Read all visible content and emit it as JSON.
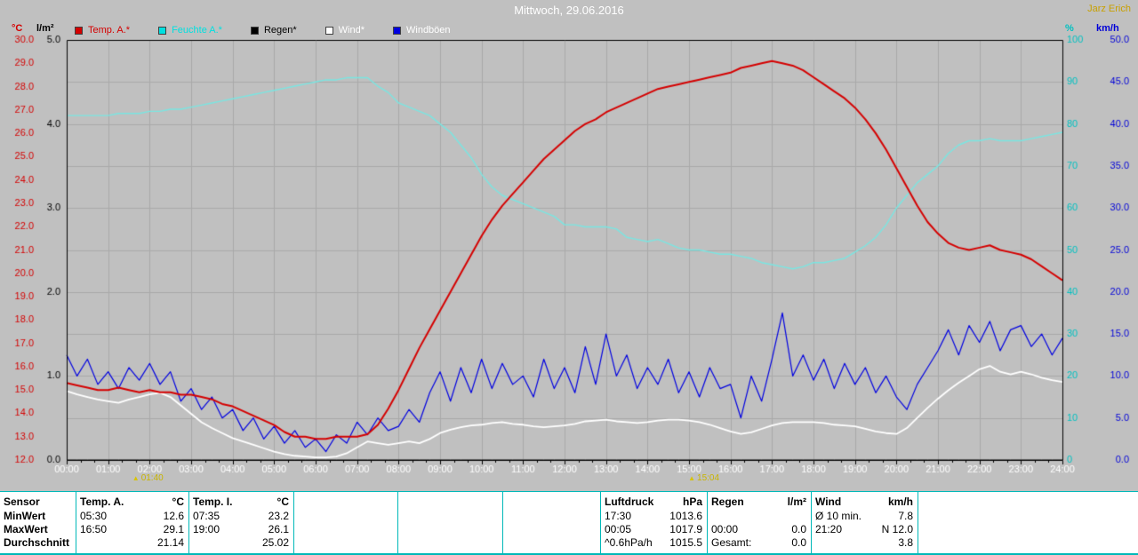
{
  "header": {
    "title": "Mittwoch, 29.06.2016",
    "user": "Jarz Erich"
  },
  "axis_units": {
    "temp": "°C",
    "rain": "l/m²",
    "humidity": "%",
    "wind": "km/h"
  },
  "legend": {
    "items": [
      {
        "label": "Temp. A.*",
        "color": "#d40000",
        "text_color": "#d40000"
      },
      {
        "label": "Feuchte A.*",
        "color": "#00e0e0",
        "text_color": "#00e0e0"
      },
      {
        "label": "Regen*",
        "color": "#000000",
        "text_color": "#000000"
      },
      {
        "label": "Wind*",
        "color": "#ffffff",
        "text_color": "#ffffff"
      },
      {
        "label": "Windböen",
        "color": "#0000e0",
        "text_color": "#ffffff"
      }
    ]
  },
  "chart_data": {
    "type": "line",
    "title": "Mittwoch, 29.06.2016",
    "x": {
      "label": "Uhrzeit",
      "min": 0,
      "max": 24,
      "step_h": 0.25,
      "tick_every_h": 1
    },
    "grid": {
      "h_divisions": 10,
      "v_every_h": 1
    },
    "axes": {
      "temp": {
        "unit": "°C",
        "min": 12,
        "max": 30,
        "tick_from": 12,
        "tick_to": 30,
        "tick_step": 1,
        "decimals": 1,
        "color": "#d40000"
      },
      "rain": {
        "unit": "l/m²",
        "min": 0,
        "max": 5,
        "tick_from": 0,
        "tick_to": 5,
        "tick_step": 1,
        "decimals": 1,
        "color": "#000000"
      },
      "humidity": {
        "unit": "%",
        "min": 0,
        "max": 100,
        "tick_from": 0,
        "tick_to": 100,
        "tick_step": 10,
        "decimals": 0,
        "color": "#00c0c0"
      },
      "wind": {
        "unit": "km/h",
        "min": 0,
        "max": 50,
        "tick_from": 0,
        "tick_to": 50,
        "tick_step": 5,
        "decimals": 1,
        "color": "#0000d8"
      }
    },
    "markers": [
      {
        "label": "01:40"
      },
      {
        "label": "15:04"
      }
    ],
    "series": [
      {
        "name": "Regen",
        "axis": "rain",
        "color": "#000000",
        "width": 1,
        "values": [
          0,
          0,
          0,
          0,
          0,
          0,
          0,
          0,
          0,
          0,
          0,
          0,
          0,
          0,
          0,
          0,
          0,
          0,
          0,
          0,
          0,
          0,
          0,
          0,
          0,
          0,
          0,
          0,
          0,
          0,
          0,
          0,
          0,
          0,
          0,
          0,
          0,
          0,
          0,
          0,
          0,
          0,
          0,
          0,
          0,
          0,
          0,
          0,
          0,
          0,
          0,
          0,
          0,
          0,
          0,
          0,
          0,
          0,
          0,
          0,
          0,
          0,
          0,
          0,
          0,
          0,
          0,
          0,
          0,
          0,
          0,
          0,
          0,
          0,
          0,
          0,
          0,
          0,
          0,
          0,
          0,
          0,
          0,
          0,
          0,
          0,
          0,
          0,
          0,
          0,
          0,
          0,
          0,
          0,
          0,
          0,
          0
        ]
      },
      {
        "name": "Feuchte A.",
        "axis": "humidity",
        "color": "#78e6e2",
        "width": 1.4,
        "values": [
          82,
          82,
          82,
          82,
          82,
          82.5,
          82.5,
          82.5,
          83,
          83,
          83.5,
          83.5,
          84,
          84.5,
          85,
          85.5,
          86,
          86.5,
          87,
          87.5,
          88,
          88.5,
          89,
          89.5,
          90,
          90.5,
          90.5,
          91,
          91,
          91,
          89,
          87.5,
          85,
          84,
          83,
          82,
          80,
          78,
          75,
          72,
          68,
          65,
          63,
          62,
          61,
          60,
          59,
          58,
          56,
          56,
          55.5,
          55.5,
          55.5,
          55,
          53,
          52.5,
          52,
          52.5,
          51.5,
          50.5,
          50,
          50,
          49.5,
          49,
          49,
          48.5,
          48,
          47,
          46.5,
          46,
          45.5,
          46,
          47,
          47,
          47.5,
          48,
          49.5,
          51,
          53,
          56,
          60,
          63,
          66,
          68,
          70,
          73,
          75,
          76,
          76,
          76.5,
          76,
          76,
          76,
          76.5,
          77,
          77.5,
          78
        ]
      },
      {
        "name": "Windböen",
        "axis": "wind",
        "color": "#0000e0",
        "width": 1.2,
        "values": [
          12.5,
          10.0,
          12.0,
          9.0,
          10.5,
          8.5,
          11.0,
          9.5,
          11.5,
          9.0,
          10.5,
          7.0,
          8.5,
          6.0,
          7.5,
          5.0,
          6.0,
          3.5,
          5.0,
          2.5,
          4.0,
          2.0,
          3.5,
          1.5,
          2.5,
          1.0,
          3.0,
          2.0,
          4.5,
          3.0,
          5.0,
          3.5,
          4.0,
          6.0,
          4.5,
          8.0,
          10.5,
          7.0,
          11.0,
          8.0,
          12.0,
          8.5,
          11.5,
          9.0,
          10.0,
          7.5,
          12.0,
          8.5,
          11.0,
          8.0,
          13.5,
          9.0,
          15.0,
          10.0,
          12.5,
          8.5,
          11.0,
          9.0,
          12.0,
          8.0,
          10.5,
          7.5,
          11.0,
          8.5,
          9.0,
          5.0,
          10.0,
          7.0,
          12.0,
          17.5,
          10.0,
          12.5,
          9.5,
          12.0,
          8.5,
          11.5,
          9.0,
          11.0,
          8.0,
          10.0,
          7.5,
          6.0,
          9.0,
          11.0,
          13.0,
          15.5,
          12.5,
          16.0,
          14.0,
          16.5,
          13.0,
          15.5,
          16.0,
          13.5,
          15.0,
          12.5,
          14.5
        ]
      },
      {
        "name": "Wind",
        "axis": "wind",
        "color": "#ffffff",
        "width": 1.8,
        "values": [
          8.2,
          7.8,
          7.5,
          7.2,
          7.0,
          6.8,
          7.2,
          7.5,
          7.8,
          8.0,
          7.5,
          6.5,
          5.5,
          4.5,
          3.8,
          3.2,
          2.6,
          2.2,
          1.8,
          1.4,
          1.0,
          0.7,
          0.5,
          0.4,
          0.3,
          0.3,
          0.4,
          0.8,
          1.5,
          2.2,
          2.0,
          1.8,
          2.0,
          2.2,
          2.0,
          2.5,
          3.2,
          3.6,
          3.9,
          4.1,
          4.2,
          4.4,
          4.5,
          4.3,
          4.2,
          4.0,
          3.9,
          4.0,
          4.1,
          4.3,
          4.6,
          4.7,
          4.8,
          4.6,
          4.5,
          4.4,
          4.5,
          4.7,
          4.8,
          4.8,
          4.7,
          4.5,
          4.2,
          3.8,
          3.4,
          3.1,
          3.3,
          3.7,
          4.1,
          4.4,
          4.5,
          4.5,
          4.5,
          4.4,
          4.2,
          4.1,
          4.0,
          3.7,
          3.4,
          3.2,
          3.1,
          3.8,
          5.0,
          6.2,
          7.3,
          8.3,
          9.2,
          10.0,
          10.8,
          11.2,
          10.5,
          10.2,
          10.5,
          10.2,
          9.8,
          9.5,
          9.3
        ]
      },
      {
        "name": "Temp. A.",
        "axis": "temp",
        "color": "#d40000",
        "width": 2,
        "values": [
          15.3,
          15.2,
          15.1,
          15.0,
          15.0,
          15.1,
          15.0,
          14.9,
          15.0,
          14.9,
          14.9,
          14.8,
          14.8,
          14.7,
          14.6,
          14.4,
          14.3,
          14.1,
          13.9,
          13.7,
          13.5,
          13.2,
          13.0,
          13.0,
          12.9,
          12.9,
          13.0,
          13.0,
          13.0,
          13.1,
          13.5,
          14.2,
          15.0,
          15.9,
          16.8,
          17.6,
          18.4,
          19.2,
          20.0,
          20.8,
          21.6,
          22.3,
          22.9,
          23.4,
          23.9,
          24.4,
          24.9,
          25.3,
          25.7,
          26.1,
          26.4,
          26.6,
          26.9,
          27.1,
          27.3,
          27.5,
          27.7,
          27.9,
          28.0,
          28.1,
          28.2,
          28.3,
          28.4,
          28.5,
          28.6,
          28.8,
          28.9,
          29.0,
          29.1,
          29.0,
          28.9,
          28.7,
          28.4,
          28.1,
          27.8,
          27.5,
          27.1,
          26.6,
          26.0,
          25.3,
          24.5,
          23.7,
          22.9,
          22.2,
          21.7,
          21.3,
          21.1,
          21.0,
          21.1,
          21.2,
          21.0,
          20.9,
          20.8,
          20.6,
          20.3,
          20.0,
          19.7
        ]
      }
    ]
  },
  "stats": {
    "row_labels": [
      "Sensor",
      "MinWert",
      "MaxWert",
      "Durchschnitt"
    ],
    "sections": [
      {
        "id": "temp_a",
        "header": "Temp. A.",
        "unit": "°C",
        "rows": [
          [
            "05:30",
            "12.6"
          ],
          [
            "16:50",
            "29.1"
          ],
          [
            "",
            "21.14"
          ]
        ]
      },
      {
        "id": "temp_i",
        "header": "Temp. I.",
        "unit": "°C",
        "rows": [
          [
            "07:35",
            "23.2"
          ],
          [
            "19:00",
            "26.1"
          ],
          [
            "",
            "25.02"
          ]
        ]
      },
      {
        "id": "pressure",
        "header": "Luftdruck",
        "unit": "hPa",
        "rows": [
          [
            "17:30",
            "1013.6"
          ],
          [
            "00:05",
            "1017.9"
          ],
          [
            "^0.6hPa/h",
            "1015.5"
          ]
        ]
      },
      {
        "id": "rain",
        "header": "Regen",
        "unit": "l/m²",
        "rows": [
          [
            "",
            ""
          ],
          [
            "00:00",
            "0.0"
          ],
          [
            "Gesamt:",
            "0.0"
          ]
        ]
      },
      {
        "id": "wind",
        "header": "Wind",
        "unit": "km/h",
        "rows": [
          [
            "Ø 10 min.",
            "7.8"
          ],
          [
            "21:20",
            "N 12.0"
          ],
          [
            "",
            "3.8"
          ]
        ]
      }
    ]
  }
}
